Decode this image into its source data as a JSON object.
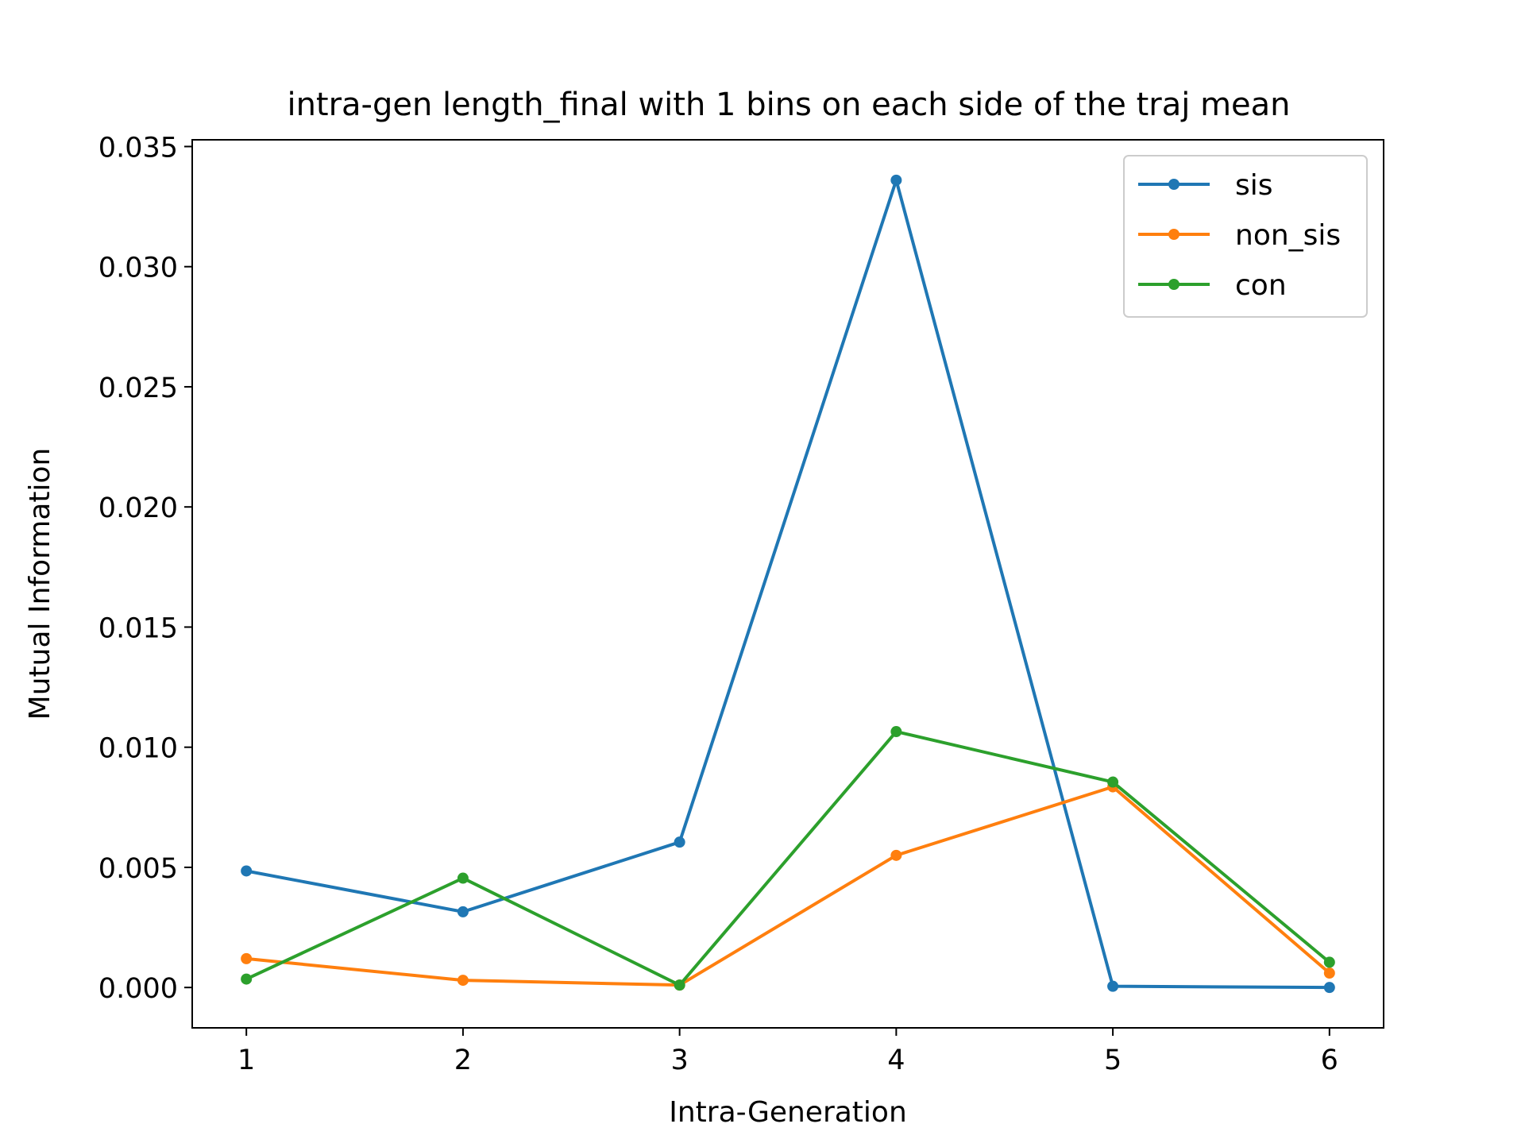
{
  "chart_data": {
    "type": "line",
    "title": "intra-gen length_final with 1 bins on each side of the traj mean",
    "xlabel": "Intra-Generation",
    "ylabel": "Mutual Information",
    "x": [
      1,
      2,
      3,
      4,
      5,
      6
    ],
    "xlim": [
      0.75,
      6.25
    ],
    "ylim": [
      -0.00168,
      0.03528
    ],
    "xticks": [
      1,
      2,
      3,
      4,
      5,
      6
    ],
    "xtick_labels": [
      "1",
      "2",
      "3",
      "4",
      "5",
      "6"
    ],
    "yticks": [
      0.0,
      0.005,
      0.01,
      0.015,
      0.02,
      0.025,
      0.03,
      0.035
    ],
    "ytick_labels": [
      "0.000",
      "0.005",
      "0.010",
      "0.015",
      "0.020",
      "0.025",
      "0.030",
      "0.035"
    ],
    "grid": false,
    "legend_position": "top-right",
    "series": [
      {
        "name": "sis",
        "color": "#1f77b4",
        "marker": "point",
        "values": [
          0.00485,
          0.00315,
          0.00605,
          0.0336,
          5e-05,
          0.0
        ]
      },
      {
        "name": "non_sis",
        "color": "#ff7f0e",
        "marker": "point",
        "values": [
          0.0012,
          0.0003,
          0.0001,
          0.0055,
          0.00835,
          0.0006
        ]
      },
      {
        "name": "con",
        "color": "#2ca02c",
        "marker": "point",
        "values": [
          0.00035,
          0.00455,
          0.0001,
          0.01065,
          0.00855,
          0.00105
        ]
      }
    ]
  }
}
